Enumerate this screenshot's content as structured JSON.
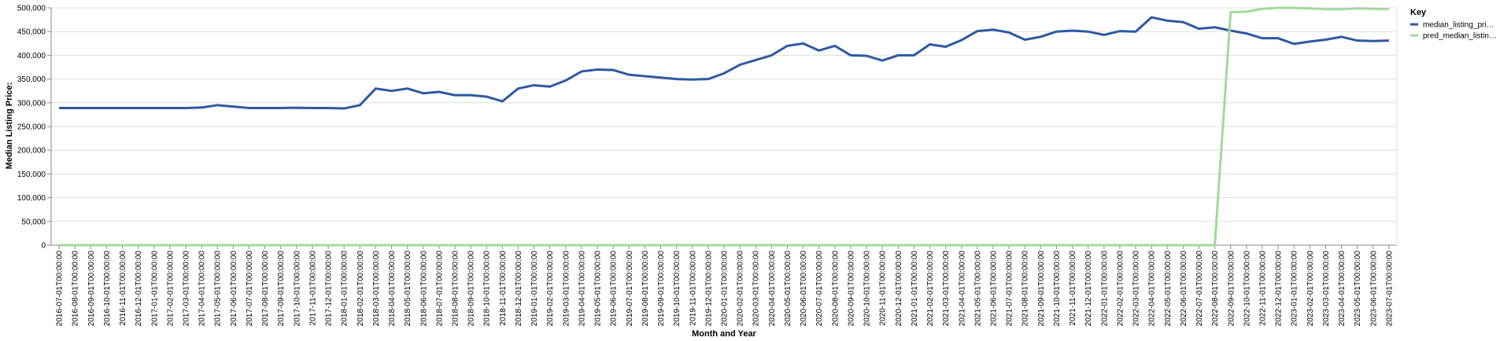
{
  "chart_data": {
    "type": "line",
    "x_label": "Month and Year",
    "y_label": "Median Listing Price:",
    "legend_title": "Key",
    "legend_position": "right",
    "grid": true,
    "categories": [
      "2016-07-01T00:00:00",
      "2016-08-01T00:00:00",
      "2016-09-01T00:00:00",
      "2016-10-01T00:00:00",
      "2016-11-01T00:00:00",
      "2016-12-01T00:00:00",
      "2017-01-01T00:00:00",
      "2017-02-01T00:00:00",
      "2017-03-01T00:00:00",
      "2017-04-01T00:00:00",
      "2017-05-01T00:00:00",
      "2017-06-01T00:00:00",
      "2017-07-01T00:00:00",
      "2017-08-01T00:00:00",
      "2017-09-01T00:00:00",
      "2017-10-01T00:00:00",
      "2017-11-01T00:00:00",
      "2017-12-01T00:00:00",
      "2018-01-01T00:00:00",
      "2018-02-01T00:00:00",
      "2018-03-01T00:00:00",
      "2018-04-01T00:00:00",
      "2018-05-01T00:00:00",
      "2018-06-01T00:00:00",
      "2018-07-01T00:00:00",
      "2018-08-01T00:00:00",
      "2018-09-01T00:00:00",
      "2018-10-01T00:00:00",
      "2018-11-01T00:00:00",
      "2018-12-01T00:00:00",
      "2019-01-01T00:00:00",
      "2019-02-01T00:00:00",
      "2019-03-01T00:00:00",
      "2019-04-01T00:00:00",
      "2019-05-01T00:00:00",
      "2019-06-01T00:00:00",
      "2019-07-01T00:00:00",
      "2019-08-01T00:00:00",
      "2019-09-01T00:00:00",
      "2019-10-01T00:00:00",
      "2019-11-01T00:00:00",
      "2019-12-01T00:00:00",
      "2020-01-01T00:00:00",
      "2020-02-01T00:00:00",
      "2020-03-01T00:00:00",
      "2020-04-01T00:00:00",
      "2020-05-01T00:00:00",
      "2020-06-01T00:00:00",
      "2020-07-01T00:00:00",
      "2020-08-01T00:00:00",
      "2020-09-01T00:00:00",
      "2020-10-01T00:00:00",
      "2020-11-01T00:00:00",
      "2020-12-01T00:00:00",
      "2021-01-01T00:00:00",
      "2021-02-01T00:00:00",
      "2021-03-01T00:00:00",
      "2021-04-01T00:00:00",
      "2021-05-01T00:00:00",
      "2021-06-01T00:00:00",
      "2021-07-01T00:00:00",
      "2021-08-01T00:00:00",
      "2021-09-01T00:00:00",
      "2021-10-01T00:00:00",
      "2021-11-01T00:00:00",
      "2021-12-01T00:00:00",
      "2022-01-01T00:00:00",
      "2022-02-01T00:00:00",
      "2022-03-01T00:00:00",
      "2022-04-01T00:00:00",
      "2022-05-01T00:00:00",
      "2022-06-01T00:00:00",
      "2022-07-01T00:00:00",
      "2022-08-01T00:00:00",
      "2022-09-01T00:00:00",
      "2022-10-01T00:00:00",
      "2022-11-01T00:00:00",
      "2022-12-01T00:00:00",
      "2023-01-01T00:00:00",
      "2023-02-01T00:00:00",
      "2023-03-01T00:00:00",
      "2023-04-01T00:00:00",
      "2023-05-01T00:00:00",
      "2023-06-01T00:00:00",
      "2023-07-01T00:00:00"
    ],
    "series": [
      {
        "name": "median_listing_pri…",
        "color": "#2d59a3",
        "values": [
          289000,
          289000,
          289000,
          289000,
          289000,
          289000,
          289000,
          289000,
          289000,
          290000,
          295000,
          292000,
          289000,
          289000,
          289000,
          289500,
          289000,
          289000,
          288000,
          295000,
          330000,
          325000,
          330000,
          320000,
          323000,
          316000,
          316000,
          313000,
          303000,
          330000,
          337000,
          334000,
          347000,
          366000,
          370000,
          369000,
          359000,
          356000,
          353000,
          350000,
          349000,
          350000,
          362000,
          380000,
          390000,
          400000,
          420000,
          425000,
          410000,
          420000,
          400000,
          399000,
          389000,
          400000,
          400000,
          423000,
          418000,
          432000,
          451000,
          454000,
          448000,
          433000,
          439000,
          450000,
          452000,
          450000,
          443000,
          451000,
          450000,
          480000,
          473000,
          470000,
          456000,
          459000,
          452000,
          446000,
          436000,
          436000,
          424000,
          429000,
          433000,
          439000,
          431000,
          430000,
          431000
        ]
      },
      {
        "name": "pred_median_listin…",
        "color": "#a1d99b",
        "values": [
          0,
          0,
          0,
          0,
          0,
          0,
          0,
          0,
          0,
          0,
          0,
          0,
          0,
          0,
          0,
          0,
          0,
          0,
          0,
          0,
          0,
          0,
          0,
          0,
          0,
          0,
          0,
          0,
          0,
          0,
          0,
          0,
          0,
          0,
          0,
          0,
          0,
          0,
          0,
          0,
          0,
          0,
          0,
          0,
          0,
          0,
          0,
          0,
          0,
          0,
          0,
          0,
          0,
          0,
          0,
          0,
          0,
          0,
          0,
          0,
          0,
          0,
          0,
          0,
          0,
          0,
          0,
          0,
          0,
          0,
          0,
          0,
          0,
          0,
          491000,
          492000,
          498000,
          500000,
          500000,
          499000,
          497000,
          497000,
          499000,
          498000,
          497000
        ]
      }
    ],
    "ylim": [
      0,
      500000
    ],
    "yticks": [
      0,
      {
        "value": 50000,
        "label": "50,000"
      },
      {
        "value": 100000,
        "label": "100,000"
      },
      {
        "value": 150000,
        "label": "150,000"
      },
      {
        "value": 200000,
        "label": "200,000"
      },
      {
        "value": 250000,
        "label": "250,000"
      },
      {
        "value": 300000,
        "label": "300,000"
      },
      {
        "value": 350000,
        "label": "350,000"
      },
      {
        "value": 400000,
        "label": "400,000"
      },
      {
        "value": 450000,
        "label": "450,000"
      },
      {
        "value": 500000,
        "label": "500,000"
      }
    ]
  }
}
